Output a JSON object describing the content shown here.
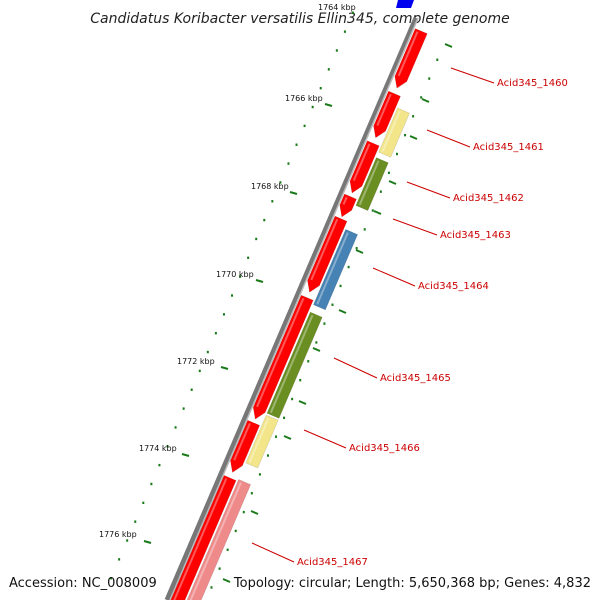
{
  "title": "Candidatus Koribacter versatilis Ellin345, complete genome",
  "footer": {
    "accession": "Accession: NC_008009",
    "summary": "Topology: circular; Length: 5,650,368 bp; Genes: 4,832"
  },
  "colors": {
    "backbone": "#888888",
    "forward_strand": "#ff0000",
    "gene_yellow": "#f2e58a",
    "gene_olive": "#6b8e23",
    "gene_blue": "#4682b4",
    "gene_pink": "#ef8a8a",
    "tick": "#1a7a1a",
    "label": "#cc0000",
    "top_marker": "#0000ee"
  },
  "kbp_labels": [
    "1764 kbp",
    "1766 kbp",
    "1768 kbp",
    "1770 kbp",
    "1772 kbp",
    "1774 kbp",
    "1776 kbp"
  ],
  "gene_labels": [
    "Acid345_1460",
    "Acid345_1461",
    "Acid345_1462",
    "Acid345_1463",
    "Acid345_1464",
    "Acid345_1465",
    "Acid345_1466",
    "Acid345_1467"
  ]
}
